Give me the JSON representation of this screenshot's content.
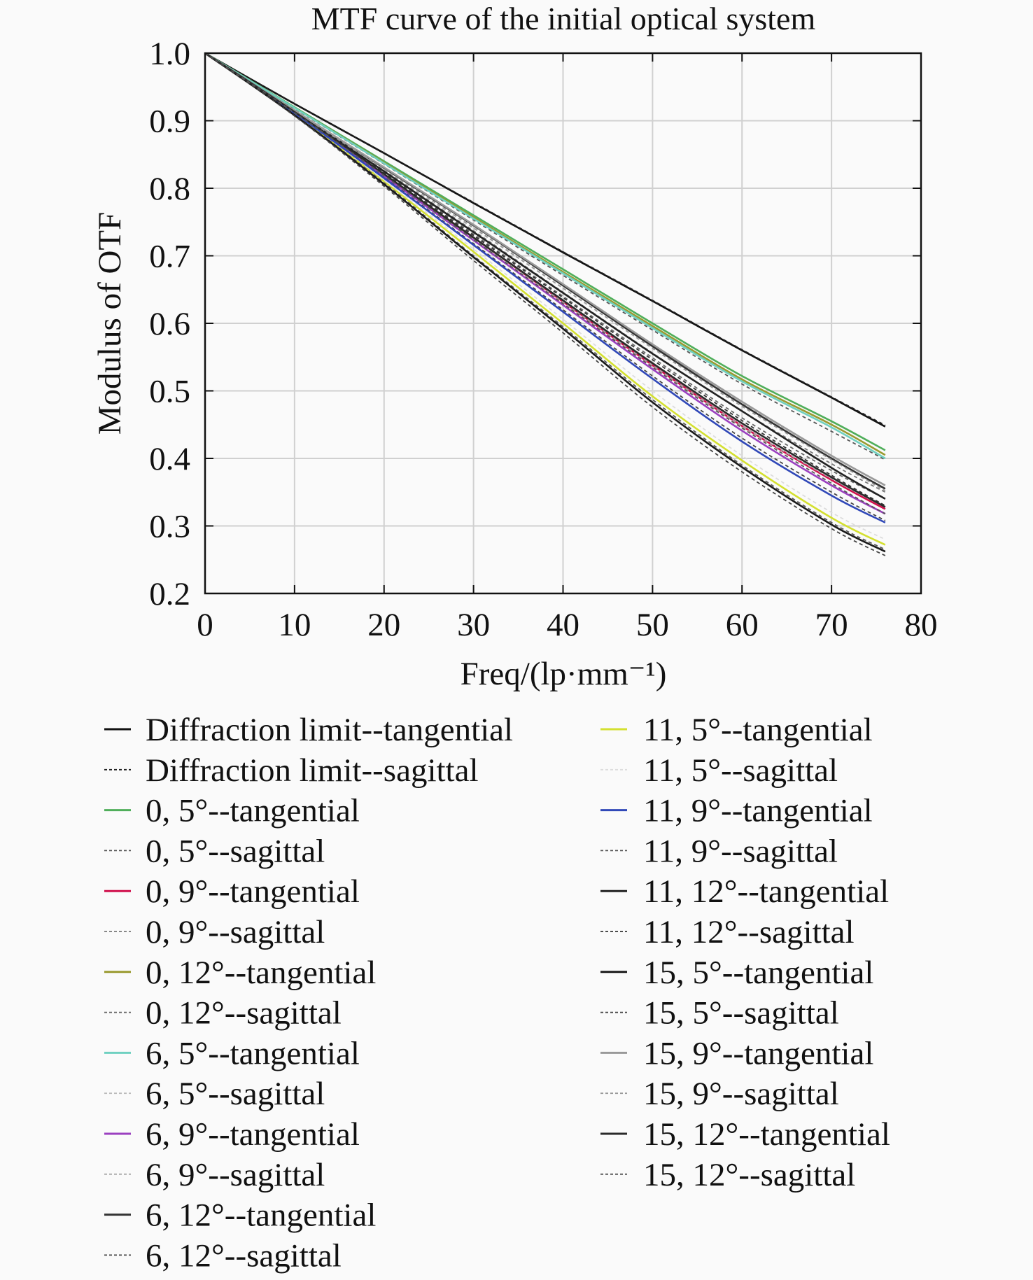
{
  "chart_data": {
    "type": "line",
    "title": "MTF curve of the initial optical system",
    "xlabel": "Freq/(lp·mm⁻¹)",
    "ylabel": "Modulus  of  OTF",
    "xlim": [
      0,
      80
    ],
    "ylim": [
      0.2,
      1.0
    ],
    "xticks": [
      "0",
      "10",
      "20",
      "30",
      "40",
      "50",
      "60",
      "70",
      "80"
    ],
    "yticks": [
      "0.2",
      "0.3",
      "0.4",
      "0.5",
      "0.6",
      "0.7",
      "0.8",
      "0.9",
      "1.0"
    ],
    "grid": true,
    "legend_position": "bottom",
    "x": [
      0,
      10,
      20,
      30,
      40,
      50,
      60,
      70,
      76
    ],
    "series": [
      {
        "name": "Diffraction limit--tangential",
        "style": "solid",
        "color": "#111111",
        "values": [
          1,
          0.925,
          0.852,
          0.778,
          0.705,
          0.633,
          0.56,
          0.49,
          0.447
        ]
      },
      {
        "name": "Diffraction limit--sagittal",
        "style": "dashed",
        "color": "#222222",
        "values": [
          1,
          0.925,
          0.852,
          0.779,
          0.706,
          0.634,
          0.561,
          0.491,
          0.449
        ]
      },
      {
        "name": "0, 5°--tangential",
        "style": "solid",
        "color": "#4fae5a",
        "values": [
          1,
          0.92,
          0.84,
          0.76,
          0.68,
          0.6,
          0.522,
          0.455,
          0.412
        ]
      },
      {
        "name": "0, 5°--sagittal",
        "style": "dashed",
        "color": "#555555",
        "values": [
          1,
          0.918,
          0.836,
          0.753,
          0.671,
          0.59,
          0.51,
          0.44,
          0.398
        ]
      },
      {
        "name": "0, 9°--tangential",
        "style": "solid",
        "color": "#d0104c",
        "values": [
          1,
          0.912,
          0.82,
          0.727,
          0.632,
          0.538,
          0.448,
          0.368,
          0.325
        ]
      },
      {
        "name": "0, 9°--sagittal",
        "style": "dashed",
        "color": "#777777",
        "values": [
          1,
          0.914,
          0.826,
          0.737,
          0.646,
          0.556,
          0.47,
          0.392,
          0.35
        ]
      },
      {
        "name": "0, 12°--tangential",
        "style": "solid",
        "color": "#9a9a30",
        "values": [
          1,
          0.919,
          0.838,
          0.757,
          0.676,
          0.596,
          0.517,
          0.45,
          0.405
        ]
      },
      {
        "name": "0, 12°--sagittal",
        "style": "dashed",
        "color": "#666666",
        "values": [
          1,
          0.913,
          0.823,
          0.732,
          0.64,
          0.549,
          0.46,
          0.382,
          0.34
        ]
      },
      {
        "name": "6, 5°--tangential",
        "style": "solid",
        "color": "#6fd0c0",
        "values": [
          1,
          0.919,
          0.837,
          0.755,
          0.674,
          0.593,
          0.514,
          0.446,
          0.4
        ]
      },
      {
        "name": "6, 5°--sagittal",
        "style": "dashed",
        "color": "#bbbbbb",
        "values": [
          1,
          0.915,
          0.83,
          0.743,
          0.655,
          0.567,
          0.482,
          0.404,
          0.36
        ]
      },
      {
        "name": "6, 9°--tangential",
        "style": "solid",
        "color": "#9b40c0",
        "values": [
          1,
          0.911,
          0.818,
          0.723,
          0.627,
          0.532,
          0.441,
          0.36,
          0.318
        ]
      },
      {
        "name": "6, 9°--sagittal",
        "style": "dashed",
        "color": "#aaaaaa",
        "values": [
          1,
          0.912,
          0.82,
          0.726,
          0.632,
          0.538,
          0.448,
          0.37,
          0.328
        ]
      },
      {
        "name": "6, 12°--tangential",
        "style": "solid",
        "color": "#333333",
        "values": [
          1,
          0.915,
          0.83,
          0.745,
          0.656,
          0.566,
          0.48,
          0.4,
          0.355
        ]
      },
      {
        "name": "6, 12°--sagittal",
        "style": "dashed",
        "color": "#444444",
        "values": [
          1,
          0.911,
          0.816,
          0.718,
          0.62,
          0.522,
          0.43,
          0.35,
          0.308
        ]
      },
      {
        "name": "11, 5°--tangential",
        "style": "solid",
        "color": "#d4e030",
        "values": [
          1,
          0.91,
          0.81,
          0.706,
          0.6,
          0.492,
          0.397,
          0.312,
          0.272
        ]
      },
      {
        "name": "11, 5°--sagittal",
        "style": "dashed",
        "color": "#dddddd",
        "values": [
          1,
          0.91,
          0.812,
          0.71,
          0.606,
          0.5,
          0.404,
          0.32,
          0.28
        ]
      },
      {
        "name": "11, 9°--tangential",
        "style": "solid",
        "color": "#3048b8",
        "values": [
          1,
          0.911,
          0.815,
          0.716,
          0.617,
          0.518,
          0.425,
          0.345,
          0.305
        ]
      },
      {
        "name": "11, 9°--sagittal",
        "style": "dashed",
        "color": "#555555",
        "values": [
          1,
          0.909,
          0.808,
          0.7,
          0.595,
          0.487,
          0.39,
          0.305,
          0.265
        ]
      },
      {
        "name": "11, 12°--tangential",
        "style": "solid",
        "color": "#222222",
        "values": [
          1,
          0.914,
          0.825,
          0.735,
          0.645,
          0.555,
          0.47,
          0.386,
          0.34
        ]
      },
      {
        "name": "11, 12°--sagittal",
        "style": "dashed",
        "color": "#333333",
        "values": [
          1,
          0.913,
          0.822,
          0.73,
          0.638,
          0.546,
          0.456,
          0.375,
          0.33
        ]
      },
      {
        "name": "15, 5°--tangential",
        "style": "solid",
        "color": "#1a1a1a",
        "values": [
          1,
          0.908,
          0.806,
          0.698,
          0.592,
          0.483,
          0.387,
          0.302,
          0.262
        ]
      },
      {
        "name": "15, 5°--sagittal",
        "style": "dashed",
        "color": "#444444",
        "values": [
          1,
          0.907,
          0.803,
          0.693,
          0.586,
          0.476,
          0.38,
          0.296,
          0.256
        ]
      },
      {
        "name": "15, 9°--tangential",
        "style": "solid",
        "color": "#999999",
        "values": [
          1,
          0.915,
          0.831,
          0.746,
          0.658,
          0.569,
          0.484,
          0.404,
          0.36
        ]
      },
      {
        "name": "15, 9°--sagittal",
        "style": "dashed",
        "color": "#999999",
        "values": [
          1,
          0.914,
          0.828,
          0.741,
          0.652,
          0.563,
          0.477,
          0.398,
          0.352
        ]
      },
      {
        "name": "15, 12°--tangential",
        "style": "solid",
        "color": "#2a2a2a",
        "values": [
          1,
          0.913,
          0.821,
          0.727,
          0.634,
          0.541,
          0.452,
          0.372,
          0.328
        ]
      },
      {
        "name": "15, 12°--sagittal",
        "style": "dashed",
        "color": "#555555",
        "values": [
          1,
          0.912,
          0.819,
          0.724,
          0.629,
          0.535,
          0.445,
          0.363,
          0.318
        ]
      }
    ]
  }
}
